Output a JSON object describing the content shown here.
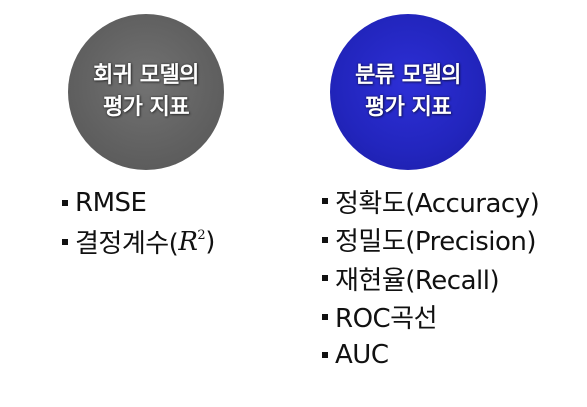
{
  "regression": {
    "title_line1": "회귀 모델의",
    "title_line2": "평가 지표",
    "circle_color": "#606060",
    "metrics": [
      {
        "text": "RMSE"
      },
      {
        "prefix": "결정계수(",
        "formula_base": "R",
        "formula_exp": "2",
        "suffix": ")"
      }
    ]
  },
  "classification": {
    "title_line1": "분류 모델의",
    "title_line2": "평가 지표",
    "circle_color": "#2225bd",
    "metrics": [
      {
        "text": "정확도(Accuracy)"
      },
      {
        "text": "정밀도(Precision)"
      },
      {
        "text": "재현율(Recall)"
      },
      {
        "text": "ROC곡선"
      },
      {
        "text": "AUC"
      }
    ]
  }
}
